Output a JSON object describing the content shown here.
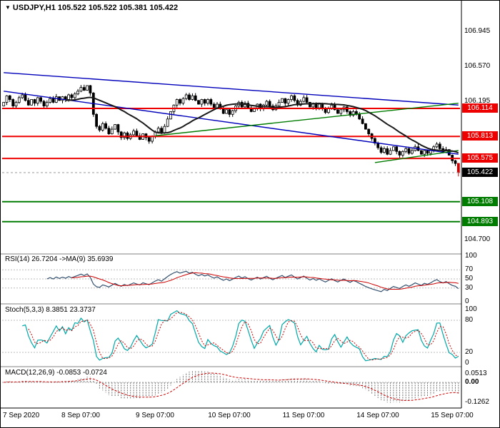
{
  "header": {
    "dropdown_icon": "▼",
    "text": "USDJPY,H1 105.522 105.522 105.381 105.422"
  },
  "colors": {
    "bull_candle": "#ffffff",
    "bear_candle": "#000000",
    "candle_outline": "#000000",
    "last_candle": "#cc0000",
    "ma_line": "#1a1a1a",
    "resistance": "#ee0000",
    "support": "#007c00",
    "channel": "#0000bb",
    "rsi_line": "#33506e",
    "rsi_ma_line": "#cc0000",
    "stoch_line": "#00a8a8",
    "stoch_signal_line": "#cc0000",
    "macd_hist": "#707070",
    "macd_signal": "#cc0000",
    "current_price_bg": "#000000"
  },
  "price_axis": {
    "plain_labels": [
      {
        "text": "106.945",
        "price": 106.945
      },
      {
        "text": "106.570",
        "price": 106.57
      },
      {
        "text": "106.195",
        "price": 106.195
      },
      {
        "text": "104.700",
        "price": 104.7
      }
    ],
    "badges": [
      {
        "text": "106.114",
        "price": 106.114,
        "color": "#ee0000",
        "type": "resistance-1"
      },
      {
        "text": "105.813",
        "price": 105.813,
        "color": "#ee0000",
        "type": "resistance-2"
      },
      {
        "text": "105.575",
        "price": 105.575,
        "color": "#ee0000",
        "type": "resistance-3"
      },
      {
        "text": "105.422",
        "price": 105.422,
        "color": "#000000",
        "type": "current-price"
      },
      {
        "text": "105.108",
        "price": 105.108,
        "color": "#007c00",
        "type": "support-1"
      },
      {
        "text": "104.893",
        "price": 104.893,
        "color": "#007c00",
        "type": "support-2"
      }
    ]
  },
  "time_axis": {
    "labels": [
      {
        "text": "7 Sep 2020",
        "index": 0,
        "align": "left"
      },
      {
        "text": "8 Sep 07:00",
        "index": 25
      },
      {
        "text": "9 Sep 07:00",
        "index": 49
      },
      {
        "text": "10 Sep 07:00",
        "index": 73
      },
      {
        "text": "11 Sep 07:00",
        "index": 97
      },
      {
        "text": "14 Sep 07:00",
        "index": 121
      },
      {
        "text": "15 Sep 07:00",
        "index": 145
      }
    ]
  },
  "panels": {
    "rsi": {
      "title": "RSI(14) 26.7204 ->MA(9) 35.6939",
      "axis_labels": [
        {
          "v": 100,
          "t": "100"
        },
        {
          "v": 70,
          "t": "70"
        },
        {
          "v": 50,
          "t": "50"
        },
        {
          "v": 30,
          "t": "30"
        },
        {
          "v": 0,
          "t": "0"
        }
      ]
    },
    "stoch": {
      "title": "Stoch(5,3,3) 8.3851 23.3737",
      "axis_labels": [
        {
          "v": 100,
          "t": "100"
        },
        {
          "v": 80,
          "t": "80"
        },
        {
          "v": 20,
          "t": "20"
        },
        {
          "v": 0,
          "t": "0"
        }
      ]
    },
    "macd": {
      "title": "MACD(12,26,9) -0.0853 -0.0724",
      "axis_labels": [
        {
          "v": 0.0513,
          "t": "0.0513"
        },
        {
          "v": 0,
          "t": "0.00",
          "bold": true
        },
        {
          "v": -0.1262,
          "t": "-0.1262"
        }
      ]
    }
  },
  "chart_data": {
    "type": "candlestick",
    "title": "USDJPY,H1",
    "symbol": "USDJPY",
    "timeframe": "H1",
    "y_axis_ticks": [
      106.945,
      106.57,
      106.195,
      104.7
    ],
    "y_range": [
      104.57,
      107.26
    ],
    "current_candle": {
      "o": 105.522,
      "h": 105.522,
      "l": 105.381,
      "c": 105.422
    },
    "closes": [
      106.18,
      106.25,
      106.21,
      106.14,
      106.18,
      106.23,
      106.26,
      106.2,
      106.15,
      106.21,
      106.17,
      106.23,
      106.19,
      106.14,
      106.18,
      106.22,
      106.18,
      106.24,
      106.2,
      106.24,
      106.21,
      106.26,
      106.23,
      106.27,
      106.3,
      106.34,
      106.31,
      106.36,
      106.28,
      106.05,
      105.92,
      105.88,
      105.95,
      105.9,
      105.84,
      105.89,
      105.94,
      105.86,
      105.8,
      105.85,
      105.79,
      105.83,
      105.87,
      105.82,
      105.78,
      105.84,
      105.8,
      105.76,
      105.81,
      105.86,
      105.9,
      105.85,
      105.92,
      106.0,
      106.08,
      106.15,
      106.21,
      106.17,
      106.22,
      106.26,
      106.21,
      106.25,
      106.2,
      106.16,
      106.21,
      106.17,
      106.21,
      106.16,
      106.12,
      106.16,
      106.11,
      106.06,
      106.1,
      106.05,
      106.09,
      106.14,
      106.18,
      106.13,
      106.17,
      106.12,
      106.08,
      106.12,
      106.16,
      106.11,
      106.15,
      106.19,
      106.14,
      106.1,
      106.14,
      106.18,
      106.22,
      106.17,
      106.21,
      106.25,
      106.2,
      106.15,
      106.19,
      106.23,
      106.18,
      106.13,
      106.17,
      106.12,
      106.16,
      106.11,
      106.07,
      106.11,
      106.15,
      106.1,
      106.06,
      106.1,
      106.13,
      106.08,
      106.04,
      106.08,
      106.05,
      106.0,
      105.95,
      105.89,
      105.84,
      105.79,
      105.74,
      105.69,
      105.64,
      105.68,
      105.62,
      105.66,
      105.7,
      105.65,
      105.61,
      105.65,
      105.68,
      105.63,
      105.66,
      105.7,
      105.66,
      105.62,
      105.66,
      105.63,
      105.66,
      105.7,
      105.73,
      105.68,
      105.64,
      105.67,
      105.61,
      105.55,
      105.52,
      105.42
    ],
    "ma_period": 21,
    "horizontal_lines": [
      {
        "price": 106.114,
        "color": "#ee0000",
        "label": "106.114",
        "kind": "resistance"
      },
      {
        "price": 105.813,
        "color": "#ee0000",
        "label": "105.813",
        "kind": "resistance"
      },
      {
        "price": 105.575,
        "color": "#ee0000",
        "label": "105.575",
        "kind": "resistance"
      },
      {
        "price": 105.108,
        "color": "#007c00",
        "label": "105.108",
        "kind": "support"
      },
      {
        "price": 104.893,
        "color": "#007c00",
        "label": "104.893",
        "kind": "support"
      }
    ],
    "current_price": {
      "value": 105.422,
      "label": "105.422"
    },
    "trendlines": [
      {
        "name": "channel-upper-line",
        "color": "#0000bb",
        "i1": 0,
        "p1": 106.5,
        "i2": 147,
        "p2": 106.15
      },
      {
        "name": "channel-lower-line",
        "color": "#0000bb",
        "i1": 0,
        "p1": 106.3,
        "i2": 147,
        "p2": 105.62
      },
      {
        "name": "ascending-trend-major",
        "color": "#007c00",
        "i1": 49,
        "p1": 105.82,
        "i2": 147,
        "p2": 106.17
      },
      {
        "name": "ascending-trend-minor",
        "color": "#007c00",
        "i1": 120,
        "p1": 105.53,
        "i2": 147,
        "p2": 105.66
      }
    ],
    "indicators": {
      "rsi": {
        "period": 14,
        "ma_period": 9,
        "value": 26.7204,
        "ma_value": 35.6939,
        "levels": [
          70,
          50,
          30
        ],
        "range": [
          0,
          100
        ]
      },
      "stoch": {
        "k": 5,
        "d": 3,
        "slowing": 3,
        "value": 8.3851,
        "signal": 23.3737,
        "levels": [
          80,
          20
        ],
        "range": [
          0,
          100
        ]
      },
      "macd": {
        "fast": 12,
        "slow": 26,
        "signal_period": 9,
        "value": -0.0853,
        "signal_value": -0.0724,
        "axis_range": [
          -0.1262,
          0.0513
        ]
      }
    }
  }
}
